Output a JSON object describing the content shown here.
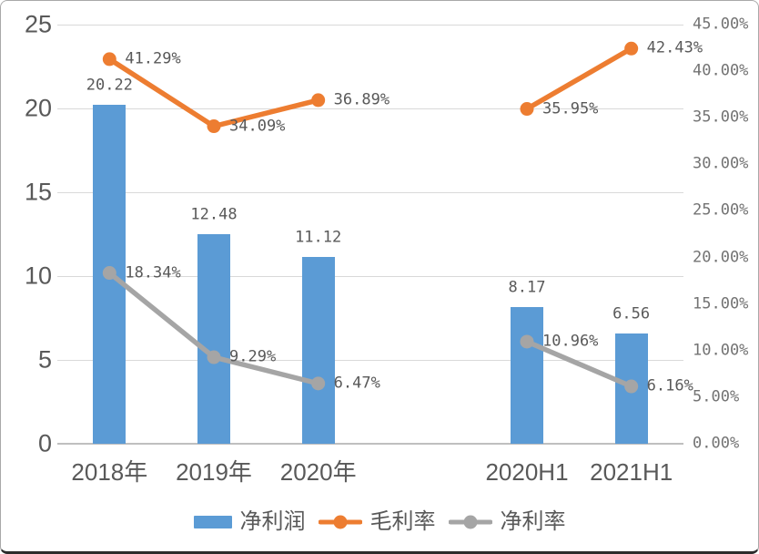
{
  "chart_data": {
    "type": "bar",
    "subtype": "combo-bar-line",
    "title": "",
    "categories": [
      "2018年",
      "2019年",
      "2020年",
      "",
      "2020H1",
      "2021H1"
    ],
    "series": [
      {
        "name": "净利润",
        "type": "bar",
        "axis": "left",
        "color": "#5b9bd5",
        "values": [
          20.22,
          12.48,
          11.12,
          null,
          8.17,
          6.56
        ],
        "labels": [
          "20.22",
          "12.48",
          "11.12",
          null,
          "8.17",
          "6.56"
        ]
      },
      {
        "name": "毛利率",
        "type": "line",
        "axis": "right",
        "color": "#ed7d31",
        "values": [
          41.29,
          34.09,
          36.89,
          null,
          35.95,
          42.43
        ],
        "labels": [
          "41.29%",
          "34.09%",
          "36.89%",
          null,
          "35.95%",
          "42.43%"
        ]
      },
      {
        "name": "净利率",
        "type": "line",
        "axis": "right",
        "color": "#a5a5a5",
        "values": [
          18.34,
          9.29,
          6.47,
          null,
          10.96,
          6.16
        ],
        "labels": [
          "18.34%",
          "9.29%",
          "6.47%",
          null,
          "10.96%",
          "6.16%"
        ]
      }
    ],
    "left_axis": {
      "min": 0,
      "max": 25,
      "step": 5,
      "tick_labels": [
        "25",
        "20",
        "15",
        "10",
        "5",
        "0"
      ]
    },
    "right_axis": {
      "min": 0,
      "max": 45,
      "step": 5,
      "tick_labels": [
        "45.00%",
        "40.00%",
        "35.00%",
        "30.00%",
        "25.00%",
        "20.00%",
        "15.00%",
        "10.00%",
        "5.00%",
        "0.00%"
      ]
    },
    "grid": "horizontal",
    "legend": {
      "position": "bottom",
      "items": [
        "净利润",
        "毛利率",
        "净利率"
      ]
    },
    "colors": {
      "bar": "#5b9bd5",
      "gross_margin_line": "#ed7d31",
      "net_margin_line": "#a5a5a5",
      "gridline": "#d9d9d9",
      "axis_line": "#bfbfbf",
      "label_text": "#595959"
    }
  }
}
